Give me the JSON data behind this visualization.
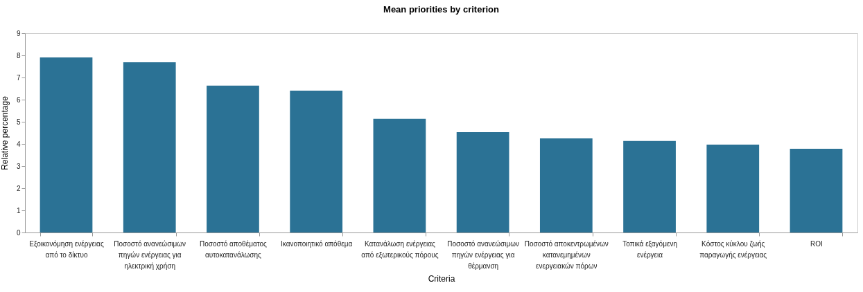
{
  "chart_data": {
    "type": "bar",
    "title": "Mean priorities by criterion",
    "xlabel": "Criteria",
    "ylabel": "Relative percentage",
    "categories": [
      "Εξοικονόμηση ενέργειας από το δίκτυο",
      "Ποσοστό ανανεώσιμων πηγών ενέργειας για ηλεκτρική χρήση",
      "Ποσοστό αποθέματος αυτοκατανάλωσης",
      "Ικανοποιητικό απόθεμα",
      "Κατανάλωση ενέργειας από εξωτερικούς πόρους",
      "Ποσοστό ανανεώσιμων πηγών ενέργειας για θέρμανση",
      "Ποσοστό αποκεντρωμένων κατανεμημένων ενεργειακών πόρων",
      "Τοπικά εξαγόμενη ενέργεια",
      "Κόστος κύκλου ζωής παραγωγής ενέργειας",
      "ROI"
    ],
    "values": [
      7.91,
      7.69,
      6.63,
      6.41,
      5.13,
      4.53,
      4.25,
      4.13,
      3.97,
      3.78
    ],
    "color": "#2b7295",
    "ylim": [
      0,
      9
    ],
    "yticks": [
      0,
      1,
      2,
      3,
      4,
      5,
      6,
      7,
      8,
      9
    ],
    "grid": false
  }
}
